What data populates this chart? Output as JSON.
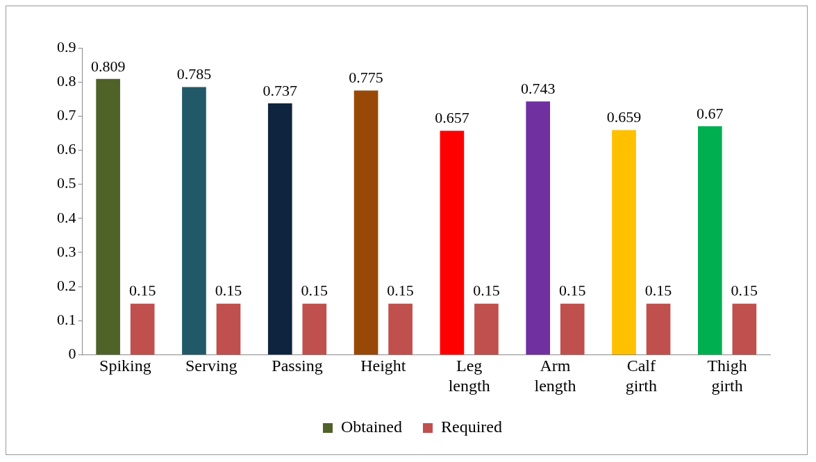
{
  "chart_data": {
    "type": "bar",
    "categories": [
      "Spiking",
      "Serving",
      "Passing",
      "Height",
      "Leg length",
      "Arm length",
      "Calf girth",
      "Thigh girth"
    ],
    "series": [
      {
        "name": "Obtained",
        "colors": [
          "#4f6228",
          "#215968",
          "#0f243e",
          "#984807",
          "#ff0000",
          "#7030a0",
          "#ffc000",
          "#00b050"
        ],
        "values": [
          0.809,
          0.785,
          0.737,
          0.775,
          0.657,
          0.743,
          0.659,
          0.67
        ]
      },
      {
        "name": "Required",
        "color": "#c0504d",
        "values": [
          0.15,
          0.15,
          0.15,
          0.15,
          0.15,
          0.15,
          0.15,
          0.15
        ]
      }
    ],
    "ylim": [
      0,
      0.9
    ],
    "yticks": [
      0,
      0.1,
      0.2,
      0.3,
      0.4,
      0.5,
      0.6,
      0.7,
      0.8,
      0.9
    ],
    "grid": false,
    "legend": "bottom",
    "data_labels": true
  }
}
